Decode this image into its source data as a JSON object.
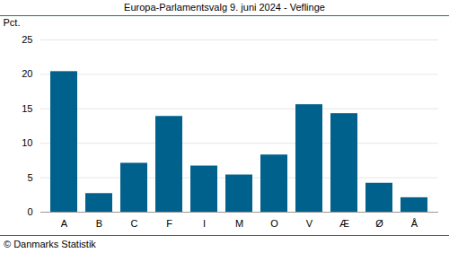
{
  "chart_data": {
    "type": "bar",
    "title": "Europa-Parlamentsvalg 9. juni 2024 - Veflinge",
    "y_label": "Pct.",
    "caption": "© Danmarks Statistik",
    "categories": [
      "A",
      "B",
      "C",
      "F",
      "I",
      "M",
      "O",
      "V",
      "Æ",
      "Ø",
      "Å"
    ],
    "values": [
      20.4,
      2.7,
      7.1,
      13.9,
      6.7,
      5.4,
      8.3,
      15.6,
      14.3,
      4.2,
      2.1
    ],
    "color": "#00618c",
    "ylim": [
      0,
      25
    ],
    "yticks": [
      0,
      5,
      10,
      15,
      20,
      25
    ],
    "grid": true
  }
}
